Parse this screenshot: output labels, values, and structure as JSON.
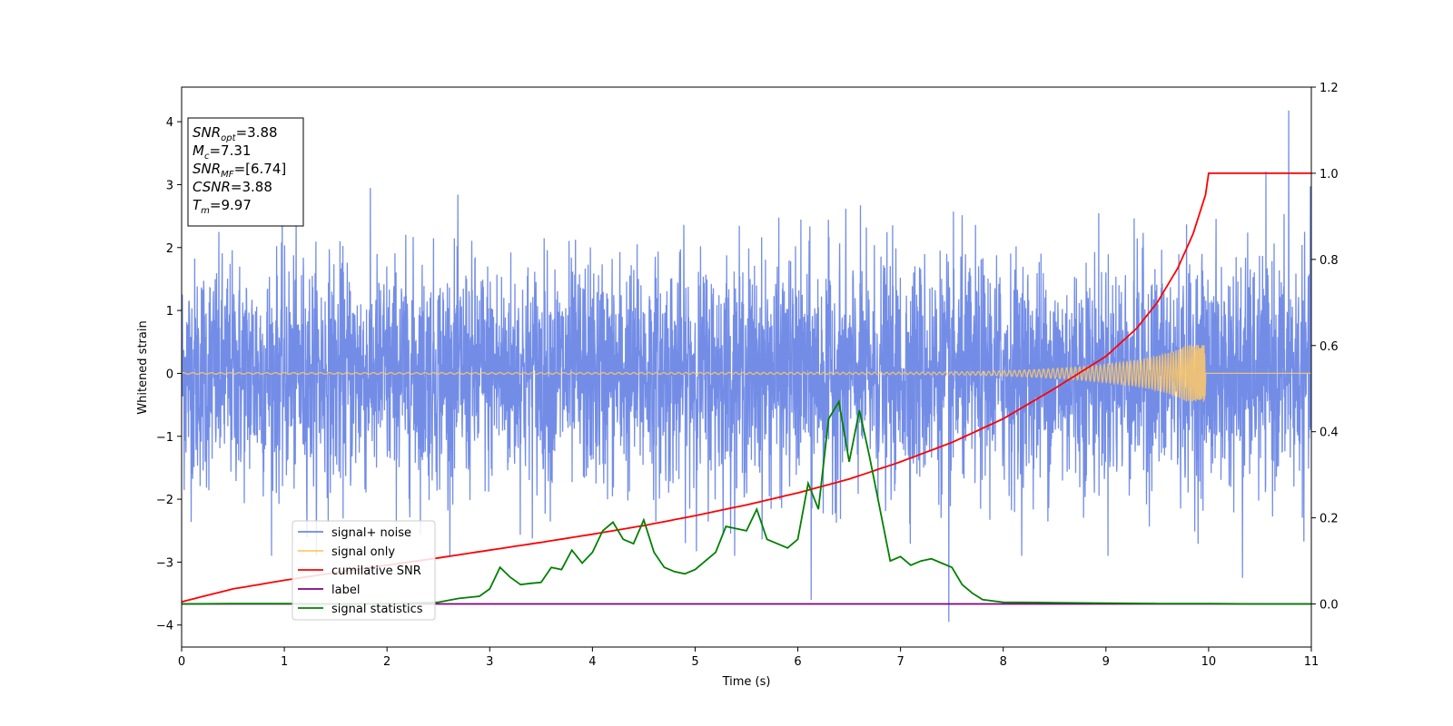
{
  "chart_data": {
    "type": "line",
    "title": "",
    "xlabel": "Time (s)",
    "ylabel": "Whitened strain",
    "xlim": [
      0,
      11
    ],
    "ylim": [
      -4.35,
      4.55
    ],
    "y2lim": [
      -0.1,
      1.2
    ],
    "xticks": [
      "0",
      "1",
      "2",
      "3",
      "4",
      "5",
      "6",
      "7",
      "8",
      "9",
      "10",
      "11"
    ],
    "yticks": [
      "−4",
      "−3",
      "−2",
      "−1",
      "0",
      "1",
      "2",
      "3",
      "4"
    ],
    "y2ticks": [
      "0.0",
      "0.2",
      "0.4",
      "0.6",
      "0.8",
      "1.0",
      "1.2"
    ],
    "grid": false,
    "legend_position": "lower-left",
    "series": [
      {
        "name": "signal+ noise",
        "color": "#6b87e6",
        "axis": "left",
        "kind": "noise",
        "envelope": {
          "typical_amplitude": 1.9,
          "max": 4.18,
          "min": -3.95
        }
      },
      {
        "name": "signal only",
        "color": "#ffc966",
        "axis": "left",
        "kind": "chirp",
        "merger_time": 9.97,
        "peak_amplitude": 0.45
      },
      {
        "name": "cumilative SNR",
        "color": "#ff0000",
        "axis": "right",
        "x": [
          0,
          0.5,
          1,
          1.5,
          2,
          2.5,
          3,
          3.5,
          4,
          4.5,
          5,
          5.5,
          6,
          6.5,
          7,
          7.5,
          8,
          8.5,
          9,
          9.3,
          9.5,
          9.7,
          9.85,
          9.97,
          10,
          11
        ],
        "y": [
          0.005,
          0.035,
          0.055,
          0.073,
          0.09,
          0.107,
          0.125,
          0.143,
          0.162,
          0.182,
          0.205,
          0.23,
          0.258,
          0.29,
          0.33,
          0.375,
          0.43,
          0.5,
          0.575,
          0.64,
          0.7,
          0.78,
          0.86,
          0.95,
          1.0,
          1.0
        ]
      },
      {
        "name": "label",
        "color": "#800080",
        "axis": "right",
        "x": [
          0,
          11
        ],
        "y": [
          0,
          0
        ]
      },
      {
        "name": "signal statistics",
        "color": "#008000",
        "axis": "right",
        "x": [
          0,
          0.5,
          1,
          1.5,
          2,
          2.2,
          2.5,
          2.7,
          2.9,
          3.0,
          3.1,
          3.2,
          3.3,
          3.4,
          3.5,
          3.6,
          3.7,
          3.8,
          3.9,
          4.0,
          4.1,
          4.2,
          4.3,
          4.4,
          4.5,
          4.6,
          4.7,
          4.8,
          4.9,
          5.0,
          5.1,
          5.2,
          5.3,
          5.4,
          5.5,
          5.6,
          5.7,
          5.8,
          5.9,
          6.0,
          6.1,
          6.2,
          6.3,
          6.4,
          6.5,
          6.6,
          6.7,
          6.8,
          6.9,
          7.0,
          7.1,
          7.2,
          7.3,
          7.4,
          7.5,
          7.6,
          7.7,
          7.8,
          8.0,
          8.5,
          9.0,
          9.5,
          10.0,
          10.5,
          11.0
        ],
        "y": [
          0.0,
          0.001,
          0.001,
          0.0,
          0.001,
          0.002,
          0.004,
          0.013,
          0.018,
          0.035,
          0.085,
          0.062,
          0.045,
          0.048,
          0.05,
          0.085,
          0.08,
          0.125,
          0.095,
          0.12,
          0.17,
          0.19,
          0.15,
          0.14,
          0.195,
          0.12,
          0.085,
          0.075,
          0.07,
          0.08,
          0.1,
          0.12,
          0.18,
          0.175,
          0.17,
          0.22,
          0.15,
          0.14,
          0.13,
          0.15,
          0.28,
          0.22,
          0.43,
          0.47,
          0.33,
          0.45,
          0.34,
          0.22,
          0.1,
          0.11,
          0.09,
          0.1,
          0.105,
          0.095,
          0.085,
          0.045,
          0.025,
          0.01,
          0.004,
          0.003,
          0.002,
          0.001,
          0.001,
          0.0,
          0.0
        ]
      }
    ],
    "annotation": {
      "lines": [
        {
          "main": "SNR",
          "sub": "opt",
          "value": "=3.88"
        },
        {
          "main": "M",
          "sub": "c",
          "value": "=7.31"
        },
        {
          "main": "SNR",
          "sub": "MF",
          "value": "=[6.74]"
        },
        {
          "main": "CSNR",
          "sub": "",
          "value": "=3.88"
        },
        {
          "main": "T",
          "sub": "m",
          "value": "=9.97"
        }
      ]
    }
  }
}
